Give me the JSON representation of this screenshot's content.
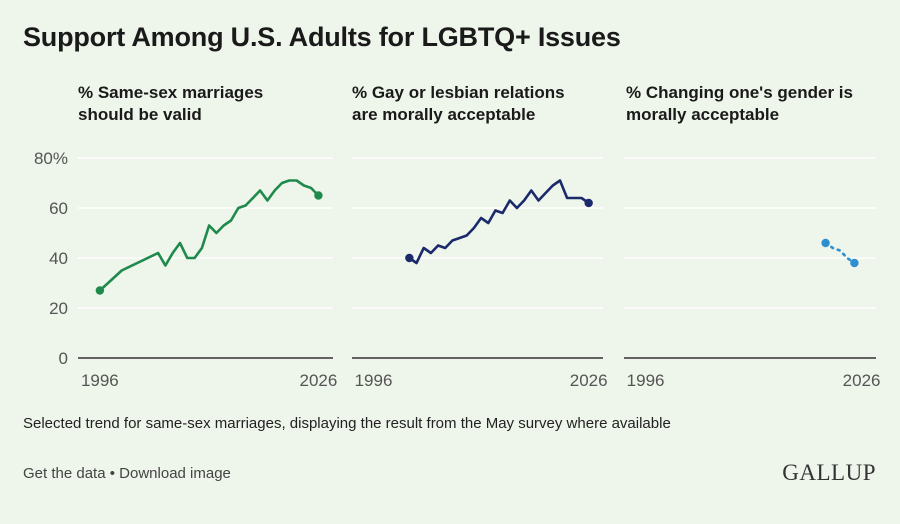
{
  "title": "Support Among U.S. Adults for LGBTQ+ Issues",
  "note": "Selected trend for same-sex marriages, displaying the result from the May survey where available",
  "footer": {
    "get_data": "Get the data",
    "separator": "•",
    "download": "Download image"
  },
  "logo": "GALLUP",
  "colors": {
    "background": "#eef5ea",
    "green": "#1f8a4c",
    "navy": "#1b2a6b",
    "lightblue": "#2e8fd0",
    "grid": "#ffffff",
    "axis": "#333333",
    "tick_text": "#555555"
  },
  "chart_data": [
    {
      "type": "line",
      "title": "% Same-sex marriages should be valid",
      "x_ticks": [
        "1996",
        "2026"
      ],
      "y_ticks": [
        "80%",
        "60",
        "40",
        "20",
        "0"
      ],
      "ylim": [
        0,
        80
      ],
      "xlim": [
        1993,
        2028
      ],
      "grid": true,
      "series": [
        {
          "color": "#1f8a4c",
          "dash": "solid",
          "endpoints": true,
          "points": [
            [
              1996,
              27
            ],
            [
              1999,
              35
            ],
            [
              2004,
              42
            ],
            [
              2005,
              37
            ],
            [
              2006,
              42
            ],
            [
              2007,
              46
            ],
            [
              2008,
              40
            ],
            [
              2009,
              40
            ],
            [
              2010,
              44
            ],
            [
              2011,
              53
            ],
            [
              2012,
              50
            ],
            [
              2013,
              53
            ],
            [
              2014,
              55
            ],
            [
              2015,
              60
            ],
            [
              2016,
              61
            ],
            [
              2017,
              64
            ],
            [
              2018,
              67
            ],
            [
              2019,
              63
            ],
            [
              2020,
              67
            ],
            [
              2021,
              70
            ],
            [
              2022,
              71
            ],
            [
              2023,
              71
            ],
            [
              2024,
              69
            ],
            [
              2025,
              68
            ],
            [
              2026,
              65
            ]
          ]
        }
      ]
    },
    {
      "type": "line",
      "title": "% Gay or lesbian relations are morally acceptable",
      "x_ticks": [
        "1996",
        "2026"
      ],
      "y_ticks": [],
      "ylim": [
        0,
        80
      ],
      "xlim": [
        1993,
        2028
      ],
      "grid": true,
      "series": [
        {
          "color": "#1b2a6b",
          "dash": "solid",
          "endpoints": true,
          "points": [
            [
              2001,
              40
            ],
            [
              2002,
              38
            ],
            [
              2003,
              44
            ],
            [
              2004,
              42
            ],
            [
              2005,
              45
            ],
            [
              2006,
              44
            ],
            [
              2007,
              47
            ],
            [
              2008,
              48
            ],
            [
              2009,
              49
            ],
            [
              2010,
              52
            ],
            [
              2011,
              56
            ],
            [
              2012,
              54
            ],
            [
              2013,
              59
            ],
            [
              2014,
              58
            ],
            [
              2015,
              63
            ],
            [
              2016,
              60
            ],
            [
              2017,
              63
            ],
            [
              2018,
              67
            ],
            [
              2019,
              63
            ],
            [
              2020,
              66
            ],
            [
              2021,
              69
            ],
            [
              2022,
              71
            ],
            [
              2023,
              64
            ],
            [
              2024,
              64
            ],
            [
              2025,
              64
            ],
            [
              2026,
              62
            ]
          ]
        }
      ]
    },
    {
      "type": "line",
      "title": "% Changing one's gender is morally acceptable",
      "x_ticks": [
        "1996",
        "2026"
      ],
      "y_ticks": [],
      "ylim": [
        0,
        80
      ],
      "xlim": [
        1993,
        2028
      ],
      "grid": true,
      "series": [
        {
          "color": "#2e8fd0",
          "dash": "dotted",
          "endpoints": true,
          "points": [
            [
              2021,
              46
            ],
            [
              2022,
              44
            ],
            [
              2023,
              43
            ],
            [
              2024,
              40
            ],
            [
              2025,
              38
            ]
          ]
        }
      ]
    }
  ]
}
